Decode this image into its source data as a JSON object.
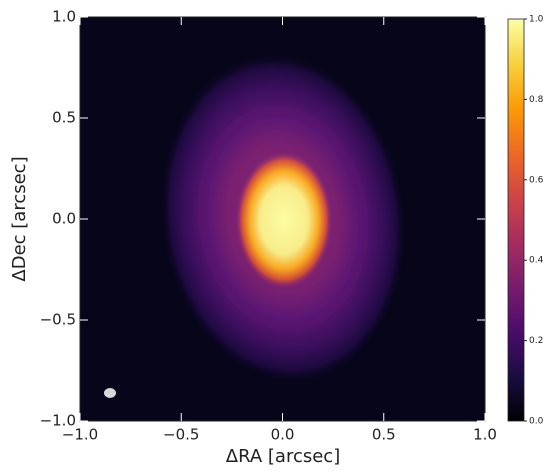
{
  "chart_data": {
    "type": "image",
    "xlabel": "ΔRA [arcsec]",
    "ylabel": "ΔDec [arcsec]",
    "xlim": [
      -1,
      1
    ],
    "ylim": [
      -1,
      1
    ],
    "xticks": [
      {
        "value": -1,
        "label": "−1.0"
      },
      {
        "value": -0.5,
        "label": "−0.5"
      },
      {
        "value": 0,
        "label": "0.0"
      },
      {
        "value": 0.5,
        "label": "0.5"
      },
      {
        "value": 1,
        "label": "1.0"
      }
    ],
    "yticks": [
      {
        "value": -1,
        "label": "−1.0"
      },
      {
        "value": -0.5,
        "label": "−0.5"
      },
      {
        "value": 0,
        "label": "0.0"
      },
      {
        "value": 0.5,
        "label": "0.5"
      },
      {
        "value": 1,
        "label": "1.0"
      }
    ],
    "colormap": "inferno",
    "clim": [
      0,
      1
    ],
    "cticks": [
      {
        "value": 0,
        "label": "0.0"
      },
      {
        "value": 0.2,
        "label": "0.2"
      },
      {
        "value": 0.4,
        "label": "0.4"
      },
      {
        "value": 0.6,
        "label": "0.6"
      },
      {
        "value": 0.8,
        "label": "0.8"
      },
      {
        "value": 1,
        "label": "1.0"
      }
    ]
  }
}
